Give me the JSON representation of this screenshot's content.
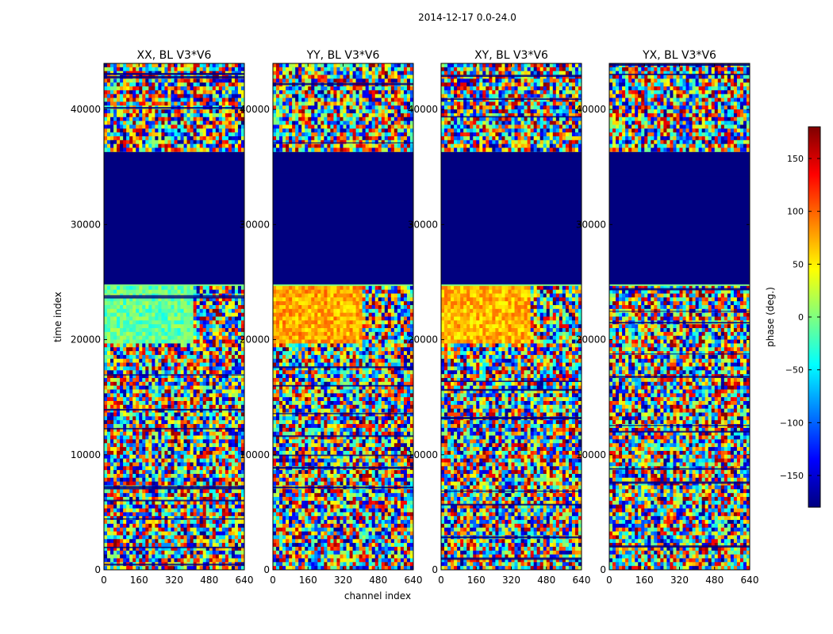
{
  "figure": {
    "suptitle": "2014-12-17 0.0-24.0",
    "ylabel": "time index",
    "xlabel": "channel index"
  },
  "colors": {
    "jet_stops": [
      "#00007f",
      "#0000ff",
      "#007fff",
      "#00ffff",
      "#7fff7f",
      "#ffff00",
      "#ff7f00",
      "#ff0000",
      "#7f0000"
    ],
    "flagged": "#00007f"
  },
  "chart_data": {
    "type": "heatmap",
    "xlim": [
      0,
      640
    ],
    "ylim": [
      0,
      44000
    ],
    "xticks": [
      0,
      160,
      320,
      480,
      640
    ],
    "yticks": [
      0,
      10000,
      20000,
      30000,
      40000
    ],
    "flagged_time_range": [
      24800,
      36300
    ],
    "panels": [
      {
        "title": "XX, BL V3*V6",
        "coherent_region": {
          "t_range": [
            19800,
            24800
          ],
          "ch_range": [
            0,
            400
          ],
          "phase_deg": -10
        }
      },
      {
        "title": "YY, BL V3*V6",
        "coherent_region": {
          "t_range": [
            19800,
            24800
          ],
          "ch_range": [
            0,
            400
          ],
          "phase_deg": 75
        }
      },
      {
        "title": "XY, BL V3*V6",
        "coherent_region": {
          "t_range": [
            19800,
            24800
          ],
          "ch_range": [
            0,
            400
          ],
          "phase_deg": 70
        }
      },
      {
        "title": "YX, BL V3*V6",
        "coherent_region": null
      }
    ],
    "colorbar": {
      "label": "phase (deg.)",
      "range": [
        -180,
        180
      ],
      "ticks": [
        -150,
        -100,
        -50,
        0,
        50,
        100,
        150
      ]
    }
  }
}
